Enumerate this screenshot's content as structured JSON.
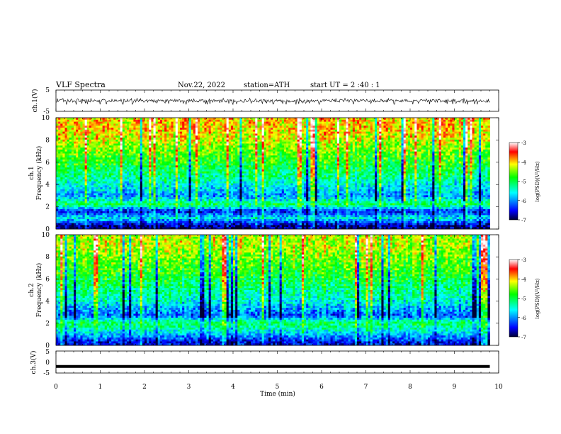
{
  "header": {
    "title": "VLF  Spectra",
    "date": "Nov.22, 2022",
    "station": "station=ATH",
    "start": "start  UT  =    2  :40 : 1"
  },
  "chart_data": [
    {
      "type": "line",
      "name": "ch1-waveform",
      "ylabel": "ch.1(V)",
      "xlim": [
        0,
        10
      ],
      "ylim": [
        -5,
        5
      ],
      "yticks": [
        "5",
        "-5"
      ],
      "data_extent_min": 9.8,
      "baseline": 0,
      "amplitude_range": [
        -1.8,
        1.2
      ]
    },
    {
      "type": "heatmap",
      "name": "ch1-spectrogram",
      "ylabel": "Frequency  (kHz)",
      "panel_label": "ch.1",
      "xlim": [
        0,
        10
      ],
      "ylim": [
        0,
        10
      ],
      "yticks": [
        "0",
        "2",
        "4",
        "6",
        "8",
        "10"
      ],
      "data_extent_min": 9.8,
      "colorbar": {
        "label": "log(PSD)(V²/Hz)",
        "range": [
          -7,
          -3
        ],
        "ticks": [
          "-3",
          "-4",
          "-5",
          "-6",
          "-7"
        ]
      },
      "profile_log_psd": [
        {
          "freq_khz": 0.3,
          "level": -6.8
        },
        {
          "freq_khz": 1.0,
          "level": -5.6
        },
        {
          "freq_khz": 1.6,
          "level": -6.5
        },
        {
          "freq_khz": 2.2,
          "level": -5.0
        },
        {
          "freq_khz": 3.0,
          "level": -6.0
        },
        {
          "freq_khz": 4.5,
          "level": -5.3
        },
        {
          "freq_khz": 6.5,
          "level": -4.7
        },
        {
          "freq_khz": 9.0,
          "level": -4.0
        }
      ]
    },
    {
      "type": "heatmap",
      "name": "ch2-spectrogram",
      "ylabel": "Frequency  (kHz)",
      "panel_label": "ch.2",
      "xlim": [
        0,
        10
      ],
      "ylim": [
        0,
        10
      ],
      "yticks": [
        "0",
        "2",
        "4",
        "6",
        "8",
        "10"
      ],
      "data_extent_min": 9.8,
      "colorbar": {
        "label": "log(PSD)(V²/Hz)",
        "range": [
          -7,
          -3
        ],
        "ticks": [
          "-3",
          "-4",
          "-5",
          "-6",
          "-7"
        ]
      },
      "profile_log_psd": [
        {
          "freq_khz": 0.3,
          "level": -6.5
        },
        {
          "freq_khz": 1.0,
          "level": -5.8
        },
        {
          "freq_khz": 2.0,
          "level": -5.0
        },
        {
          "freq_khz": 2.7,
          "level": -6.2
        },
        {
          "freq_khz": 4.0,
          "level": -5.5
        },
        {
          "freq_khz": 6.5,
          "level": -4.8
        },
        {
          "freq_khz": 9.0,
          "level": -4.3
        }
      ]
    },
    {
      "type": "line",
      "name": "ch3-waveform",
      "ylabel": "ch.3(V)",
      "xlim": [
        0,
        10
      ],
      "ylim": [
        -5,
        5
      ],
      "yticks": [
        "5",
        "0",
        "-5"
      ],
      "data_extent_min": 9.8,
      "baseline": -2
    }
  ],
  "xaxis": {
    "label": "Time  (min)",
    "ticks": [
      "0",
      "1",
      "2",
      "3",
      "4",
      "5",
      "6",
      "7",
      "8",
      "9",
      "10"
    ]
  },
  "colors": {
    "colormap": [
      "#000033",
      "#0000ff",
      "#00ffff",
      "#00ff00",
      "#ffff00",
      "#ff0000",
      "#ffffff"
    ]
  }
}
